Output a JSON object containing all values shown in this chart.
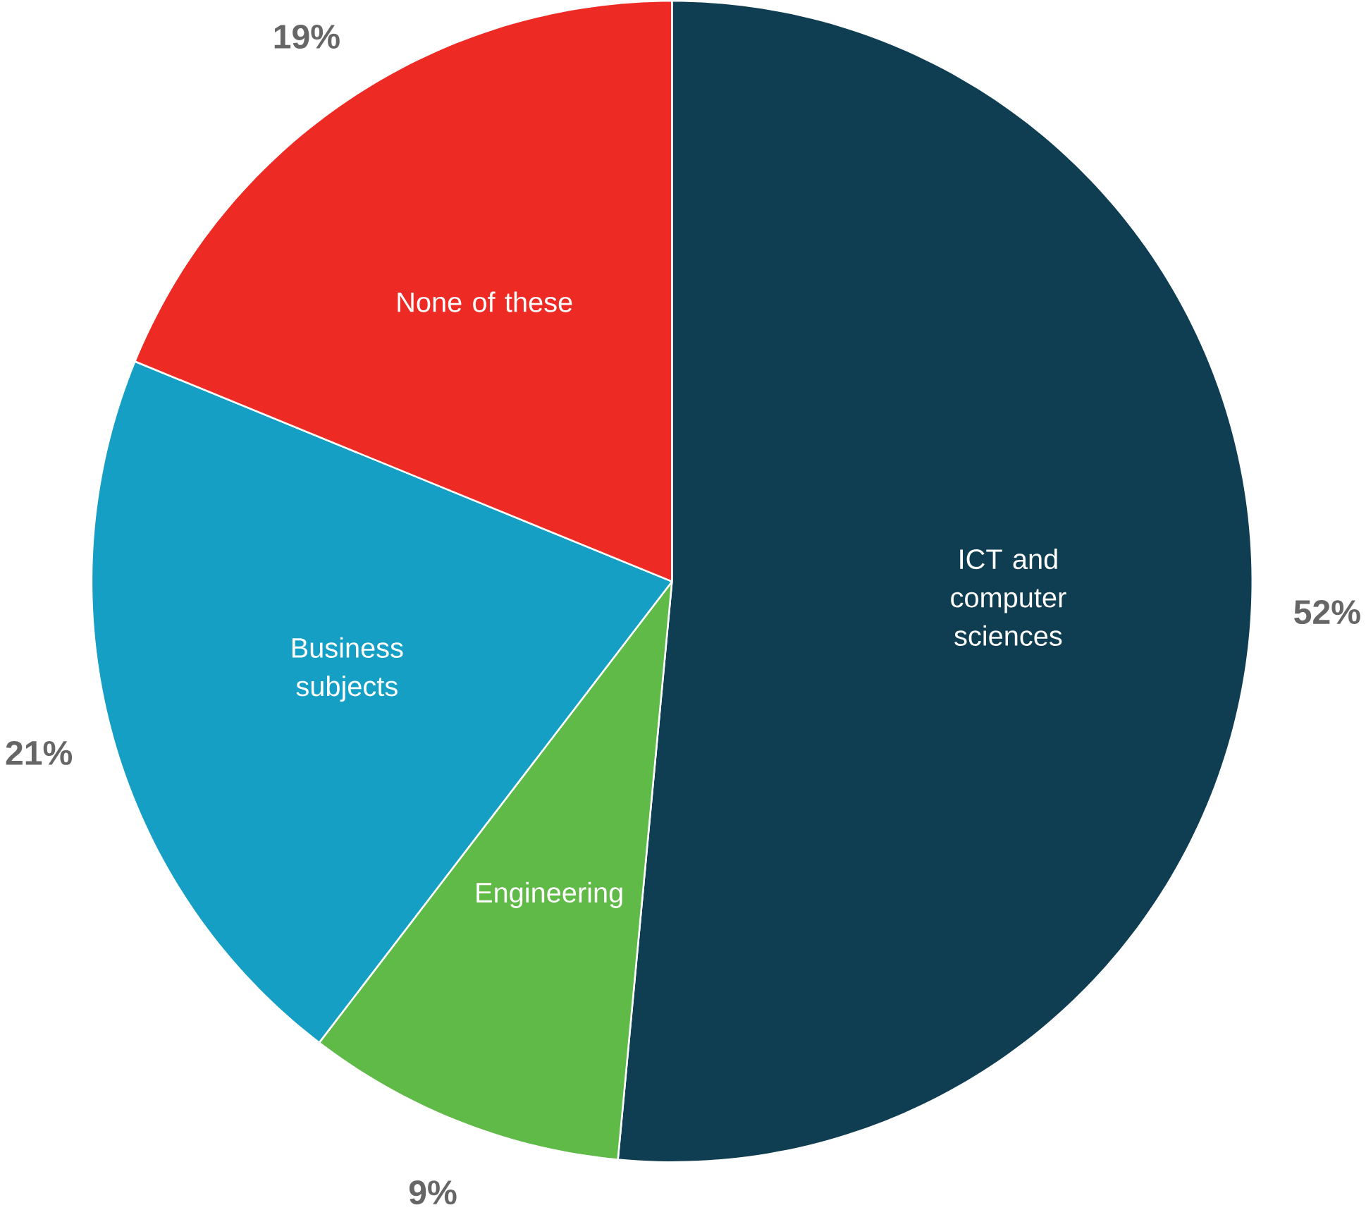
{
  "chart_data": {
    "type": "pie",
    "categories": [
      "ICT and computer sciences",
      "Engineering",
      "Business subjects",
      "None of these"
    ],
    "values": [
      52,
      9,
      21,
      19
    ],
    "colors": [
      "#0f3d51",
      "#5fba47",
      "#159fc4",
      "#ee2a24"
    ],
    "value_labels": [
      "52%",
      "9%",
      "21%",
      "19%"
    ]
  }
}
